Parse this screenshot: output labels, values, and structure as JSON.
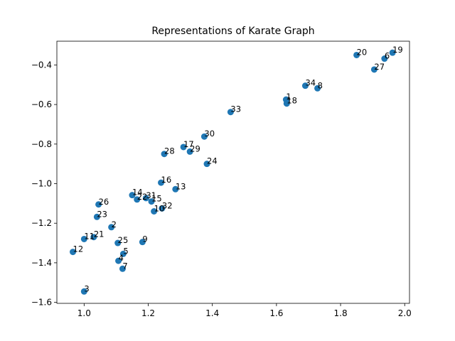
{
  "chart_data": {
    "type": "scatter",
    "title": "Representations of Karate Graph",
    "xlabel": "",
    "ylabel": "",
    "xlim": [
      0.915,
      2.015
    ],
    "ylim": [
      -1.605,
      -0.28
    ],
    "xticks": [
      1.0,
      1.2,
      1.4,
      1.6,
      1.8,
      2.0
    ],
    "xtick_labels": [
      "1.0",
      "1.2",
      "1.4",
      "1.6",
      "1.8",
      "2.0"
    ],
    "yticks": [
      -1.6,
      -1.4,
      -1.2,
      -1.0,
      -0.8,
      -0.6,
      -0.4
    ],
    "ytick_labels": [
      "−1.6",
      "−1.4",
      "−1.2",
      "−1.0",
      "−0.8",
      "−0.6",
      "−0.4"
    ],
    "grid": false,
    "marker_color": "#1f77b4",
    "points": [
      {
        "label": "1",
        "x": 1.63,
        "y": -0.575
      },
      {
        "label": "2",
        "x": 1.085,
        "y": -1.22
      },
      {
        "label": "3",
        "x": 1.0,
        "y": -1.545
      },
      {
        "label": "4",
        "x": 1.107,
        "y": -1.39
      },
      {
        "label": "5",
        "x": 1.122,
        "y": -1.355
      },
      {
        "label": "6",
        "x": 1.937,
        "y": -0.368
      },
      {
        "label": "7",
        "x": 1.12,
        "y": -1.43
      },
      {
        "label": "8",
        "x": 1.728,
        "y": -0.518
      },
      {
        "label": "9",
        "x": 1.182,
        "y": -1.295
      },
      {
        "label": "10",
        "x": 1.218,
        "y": -1.14
      },
      {
        "label": "11",
        "x": 1.0,
        "y": -1.28
      },
      {
        "label": "12",
        "x": 0.965,
        "y": -1.345
      },
      {
        "label": "13",
        "x": 1.285,
        "y": -1.028
      },
      {
        "label": "14",
        "x": 1.15,
        "y": -1.058
      },
      {
        "label": "15",
        "x": 1.21,
        "y": -1.09
      },
      {
        "label": "16",
        "x": 1.24,
        "y": -0.995
      },
      {
        "label": "17",
        "x": 1.31,
        "y": -0.815
      },
      {
        "label": "18",
        "x": 1.632,
        "y": -0.595
      },
      {
        "label": "19",
        "x": 1.962,
        "y": -0.338
      },
      {
        "label": "20",
        "x": 1.85,
        "y": -0.35
      },
      {
        "label": "21",
        "x": 1.03,
        "y": -1.27
      },
      {
        "label": "22",
        "x": 1.165,
        "y": -1.08
      },
      {
        "label": "23",
        "x": 1.04,
        "y": -1.168
      },
      {
        "label": "24",
        "x": 1.383,
        "y": -0.9
      },
      {
        "label": "25",
        "x": 1.105,
        "y": -1.3
      },
      {
        "label": "26",
        "x": 1.045,
        "y": -1.105
      },
      {
        "label": "27",
        "x": 1.905,
        "y": -0.423
      },
      {
        "label": "28",
        "x": 1.25,
        "y": -0.85
      },
      {
        "label": "29",
        "x": 1.33,
        "y": -0.838
      },
      {
        "label": "30",
        "x": 1.375,
        "y": -0.762
      },
      {
        "label": "31",
        "x": 1.193,
        "y": -1.073
      },
      {
        "label": "32",
        "x": 1.243,
        "y": -1.125
      },
      {
        "label": "33",
        "x": 1.457,
        "y": -0.638
      },
      {
        "label": "34",
        "x": 1.69,
        "y": -0.505
      }
    ]
  }
}
